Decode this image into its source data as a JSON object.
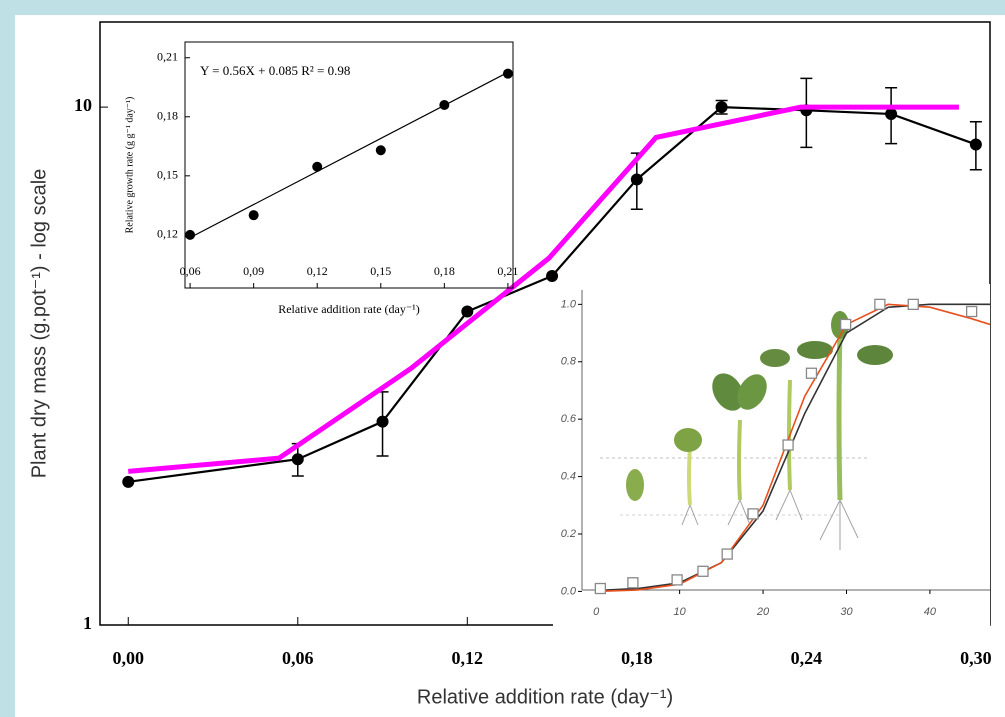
{
  "chart_data": [
    {
      "type": "line",
      "y_label": "Plant dry mass (g.pot⁻¹) - log scale",
      "x_label": "Relative addition rate (day⁻¹)",
      "log_y": true,
      "xlim": [
        -0.01,
        0.305
      ],
      "ylim": [
        1,
        14.6
      ],
      "xticks": [
        {
          "value": 0,
          "label": "0,00"
        },
        {
          "value": 0.06,
          "label": "0,06"
        },
        {
          "value": 0.12,
          "label": "0,12"
        },
        {
          "value": 0.18,
          "label": "0,18"
        },
        {
          "value": 0.24,
          "label": "0,24"
        },
        {
          "value": 0.3,
          "label": "0,30"
        }
      ],
      "yticks": [
        1,
        10
      ],
      "series": [
        {
          "color": "#000000",
          "marker": "circle",
          "x": [
            0,
            0.06,
            0.09,
            0.12,
            0.15,
            0.18,
            0.21,
            0.24,
            0.27,
            0.3
          ],
          "values": [
            1.89,
            2.09,
            2.47,
            4.03,
            4.72,
            7.25,
            10,
            9.86,
            9.7,
            8.47
          ],
          "errors": [
            null,
            0.15,
            0.35,
            null,
            null,
            0.9,
            0.3,
            1.5,
            1.2,
            0.9
          ]
        },
        {
          "color": "#ff00ff",
          "x": [
            0,
            0.0534,
            0.1001,
            0.1489,
            0.1868,
            0.238,
            0.294
          ],
          "values": [
            1.98,
            2.1,
            3.13,
            5.11,
            8.74,
            10,
            10
          ]
        }
      ]
    },
    {
      "type": "scatter",
      "annotation": "Y = 0.56X + 0.085  R² = 0.98",
      "y_label": "Relative growth rate (g g⁻¹ day⁻¹)",
      "x_label": "Relative addition rate (day⁻¹)",
      "xlim": [
        0.0576,
        0.2124
      ],
      "ylim": [
        0.093,
        0.218
      ],
      "xticks": [
        {
          "value": 0.06,
          "label": "0,06"
        },
        {
          "value": 0.09,
          "label": "0,09"
        },
        {
          "value": 0.12,
          "label": "0,12"
        },
        {
          "value": 0.15,
          "label": "0,15"
        },
        {
          "value": 0.18,
          "label": "0,18"
        },
        {
          "value": 0.21,
          "label": "0,21"
        }
      ],
      "yticks": [
        {
          "value": 0.12,
          "label": "0,12"
        },
        {
          "value": 0.15,
          "label": "0,15"
        },
        {
          "value": 0.18,
          "label": "0,18"
        },
        {
          "value": 0.21,
          "label": "0,21"
        }
      ],
      "series": [
        {
          "color": "#000000",
          "marker": "circle",
          "x": [
            0.06,
            0.09,
            0.12,
            0.15,
            0.18,
            0.21
          ],
          "values": [
            0.12,
            0.13,
            0.1546,
            0.163,
            0.186,
            0.2019
          ]
        },
        {
          "color": "#000000",
          "x": [
            0.06,
            0.21
          ],
          "values": [
            0.1186,
            0.2026
          ]
        }
      ]
    },
    {
      "type": "line",
      "xlim": [
        -1.7,
        47.2
      ],
      "ylim": [
        -0.03,
        1.05
      ],
      "xticks": [
        0,
        10,
        20,
        30,
        40
      ],
      "yticks": [
        {
          "value": 0,
          "label": "0.0"
        },
        0.2,
        0.4,
        0.6,
        0.8,
        {
          "value": 1,
          "label": "1.0"
        }
      ],
      "series": [
        {
          "color": "#333333",
          "x": [
            0,
            5,
            10,
            15,
            20,
            25,
            30,
            35,
            40,
            45,
            47.2
          ],
          "values": [
            0.003,
            0.01,
            0.03,
            0.1,
            0.28,
            0.62,
            0.9,
            0.99,
            1,
            1,
            1
          ]
        },
        {
          "color": "#e8501e",
          "x": [
            0,
            5,
            10,
            15,
            20,
            25,
            30,
            35,
            40,
            45,
            47.2
          ],
          "values": [
            0,
            0.005,
            0.025,
            0.1,
            0.3,
            0.68,
            0.93,
            1,
            0.99,
            0.95,
            0.93
          ]
        },
        {
          "color": "#888888",
          "marker": "square",
          "x": [
            0.5,
            4.4,
            9.7,
            12.8,
            15.7,
            18.8,
            23,
            25.8,
            29.9,
            34,
            38,
            45
          ],
          "values": [
            0.01,
            0.03,
            0.04,
            0.07,
            0.13,
            0.27,
            0.51,
            0.76,
            0.93,
            1,
            1,
            0.975
          ]
        }
      ]
    }
  ]
}
